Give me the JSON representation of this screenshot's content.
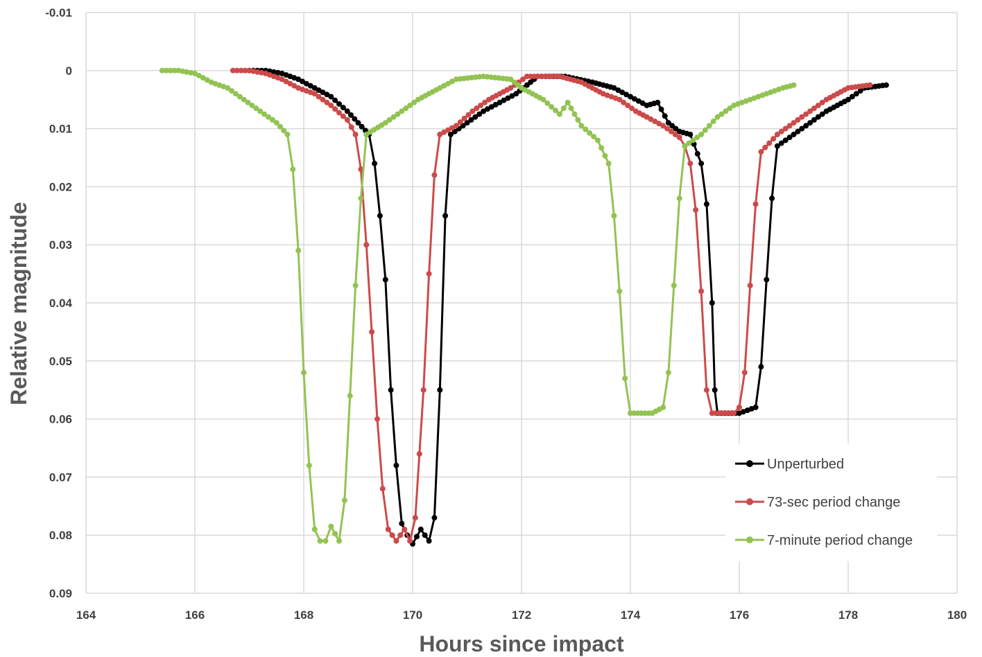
{
  "chart_data": {
    "type": "line",
    "title": "",
    "xlabel": "Hours since impact",
    "ylabel": "Relative magnitude",
    "xlim": [
      164,
      180
    ],
    "ylim": [
      -0.01,
      0.09
    ],
    "y_inverted": true,
    "xticks": [
      "164",
      "166",
      "168",
      "170",
      "172",
      "174",
      "176",
      "178",
      "180"
    ],
    "yticks": [
      "-0.01",
      "0",
      "0.01",
      "0.02",
      "0.03",
      "0.04",
      "0.05",
      "0.06",
      "0.07",
      "0.08",
      "0.09"
    ],
    "grid": true,
    "legend_position": "bottom-right",
    "series": [
      {
        "name": "Unperturbed",
        "color": "#000000",
        "points": [
          [
            167.0,
            0.0
          ],
          [
            167.3,
            0.0
          ],
          [
            167.6,
            0.0005
          ],
          [
            167.9,
            0.0015
          ],
          [
            168.2,
            0.003
          ],
          [
            168.5,
            0.0045
          ],
          [
            168.8,
            0.007
          ],
          [
            169.0,
            0.009
          ],
          [
            169.2,
            0.011
          ],
          [
            169.3,
            0.016
          ],
          [
            169.4,
            0.025
          ],
          [
            169.5,
            0.036
          ],
          [
            169.6,
            0.055
          ],
          [
            169.7,
            0.068
          ],
          [
            169.8,
            0.078
          ],
          [
            169.9,
            0.08
          ],
          [
            170.0,
            0.0815
          ],
          [
            170.15,
            0.079
          ],
          [
            170.3,
            0.081
          ],
          [
            170.4,
            0.077
          ],
          [
            170.5,
            0.055
          ],
          [
            170.6,
            0.025
          ],
          [
            170.7,
            0.011
          ],
          [
            171.0,
            0.009
          ],
          [
            171.3,
            0.007
          ],
          [
            171.6,
            0.0055
          ],
          [
            171.9,
            0.004
          ],
          [
            172.3,
            0.001
          ],
          [
            172.8,
            0.001
          ],
          [
            173.3,
            0.002
          ],
          [
            173.7,
            0.003
          ],
          [
            174.0,
            0.0045
          ],
          [
            174.3,
            0.006
          ],
          [
            174.5,
            0.0055
          ],
          [
            174.7,
            0.009
          ],
          [
            174.9,
            0.0105
          ],
          [
            175.1,
            0.011
          ],
          [
            175.3,
            0.016
          ],
          [
            175.4,
            0.023
          ],
          [
            175.5,
            0.04
          ],
          [
            175.55,
            0.055
          ],
          [
            175.6,
            0.059
          ],
          [
            176.0,
            0.059
          ],
          [
            176.3,
            0.058
          ],
          [
            176.4,
            0.051
          ],
          [
            176.5,
            0.036
          ],
          [
            176.6,
            0.022
          ],
          [
            176.7,
            0.013
          ],
          [
            177.0,
            0.011
          ],
          [
            177.3,
            0.009
          ],
          [
            177.6,
            0.007
          ],
          [
            178.0,
            0.005
          ],
          [
            178.3,
            0.003
          ],
          [
            178.7,
            0.0025
          ]
        ]
      },
      {
        "name": "73-sec period change",
        "color": "#cc4a4a",
        "points": [
          [
            166.7,
            0.0
          ],
          [
            167.0,
            0.0
          ],
          [
            167.3,
            0.0005
          ],
          [
            167.6,
            0.0015
          ],
          [
            167.9,
            0.003
          ],
          [
            168.2,
            0.004
          ],
          [
            168.5,
            0.006
          ],
          [
            168.8,
            0.0085
          ],
          [
            168.95,
            0.011
          ],
          [
            169.05,
            0.017
          ],
          [
            169.15,
            0.03
          ],
          [
            169.25,
            0.045
          ],
          [
            169.35,
            0.06
          ],
          [
            169.45,
            0.072
          ],
          [
            169.55,
            0.079
          ],
          [
            169.7,
            0.081
          ],
          [
            169.85,
            0.079
          ],
          [
            169.95,
            0.081
          ],
          [
            170.05,
            0.077
          ],
          [
            170.2,
            0.055
          ],
          [
            170.3,
            0.035
          ],
          [
            170.4,
            0.018
          ],
          [
            170.5,
            0.011
          ],
          [
            170.8,
            0.0095
          ],
          [
            171.1,
            0.007
          ],
          [
            171.4,
            0.005
          ],
          [
            171.8,
            0.003
          ],
          [
            172.1,
            0.001
          ],
          [
            172.7,
            0.001
          ],
          [
            173.1,
            0.002
          ],
          [
            173.5,
            0.004
          ],
          [
            173.8,
            0.005
          ],
          [
            174.1,
            0.007
          ],
          [
            174.3,
            0.008
          ],
          [
            174.6,
            0.0095
          ],
          [
            174.9,
            0.0115
          ],
          [
            175.0,
            0.013
          ],
          [
            175.1,
            0.016
          ],
          [
            175.2,
            0.024
          ],
          [
            175.3,
            0.038
          ],
          [
            175.4,
            0.055
          ],
          [
            175.5,
            0.059
          ],
          [
            175.9,
            0.059
          ],
          [
            176.0,
            0.058
          ],
          [
            176.1,
            0.052
          ],
          [
            176.2,
            0.037
          ],
          [
            176.3,
            0.023
          ],
          [
            176.4,
            0.014
          ],
          [
            176.7,
            0.011
          ],
          [
            177.0,
            0.009
          ],
          [
            177.3,
            0.007
          ],
          [
            177.6,
            0.005
          ],
          [
            178.0,
            0.003
          ],
          [
            178.4,
            0.0025
          ]
        ]
      },
      {
        "name": "7-minute period change",
        "color": "#92c353",
        "points": [
          [
            165.4,
            0.0
          ],
          [
            165.7,
            0.0
          ],
          [
            166.0,
            0.0005
          ],
          [
            166.3,
            0.002
          ],
          [
            166.6,
            0.003
          ],
          [
            166.9,
            0.005
          ],
          [
            167.2,
            0.007
          ],
          [
            167.5,
            0.009
          ],
          [
            167.7,
            0.011
          ],
          [
            167.8,
            0.017
          ],
          [
            167.9,
            0.031
          ],
          [
            168.0,
            0.052
          ],
          [
            168.1,
            0.068
          ],
          [
            168.2,
            0.079
          ],
          [
            168.3,
            0.081
          ],
          [
            168.4,
            0.081
          ],
          [
            168.5,
            0.0785
          ],
          [
            168.65,
            0.081
          ],
          [
            168.75,
            0.074
          ],
          [
            168.85,
            0.056
          ],
          [
            168.95,
            0.037
          ],
          [
            169.05,
            0.022
          ],
          [
            169.15,
            0.011
          ],
          [
            169.5,
            0.009
          ],
          [
            169.8,
            0.007
          ],
          [
            170.1,
            0.005
          ],
          [
            170.5,
            0.003
          ],
          [
            170.8,
            0.0015
          ],
          [
            171.3,
            0.001
          ],
          [
            171.8,
            0.0015
          ],
          [
            172.0,
            0.003
          ],
          [
            172.4,
            0.005
          ],
          [
            172.7,
            0.0075
          ],
          [
            172.85,
            0.0055
          ],
          [
            173.1,
            0.0095
          ],
          [
            173.4,
            0.012
          ],
          [
            173.6,
            0.016
          ],
          [
            173.7,
            0.025
          ],
          [
            173.8,
            0.038
          ],
          [
            173.9,
            0.053
          ],
          [
            174.0,
            0.059
          ],
          [
            174.4,
            0.059
          ],
          [
            174.6,
            0.058
          ],
          [
            174.7,
            0.052
          ],
          [
            174.8,
            0.037
          ],
          [
            174.9,
            0.022
          ],
          [
            175.0,
            0.013
          ],
          [
            175.3,
            0.011
          ],
          [
            175.6,
            0.008
          ],
          [
            175.9,
            0.006
          ],
          [
            176.2,
            0.005
          ],
          [
            176.5,
            0.004
          ],
          [
            176.8,
            0.003
          ],
          [
            177.0,
            0.0025
          ]
        ]
      }
    ]
  }
}
